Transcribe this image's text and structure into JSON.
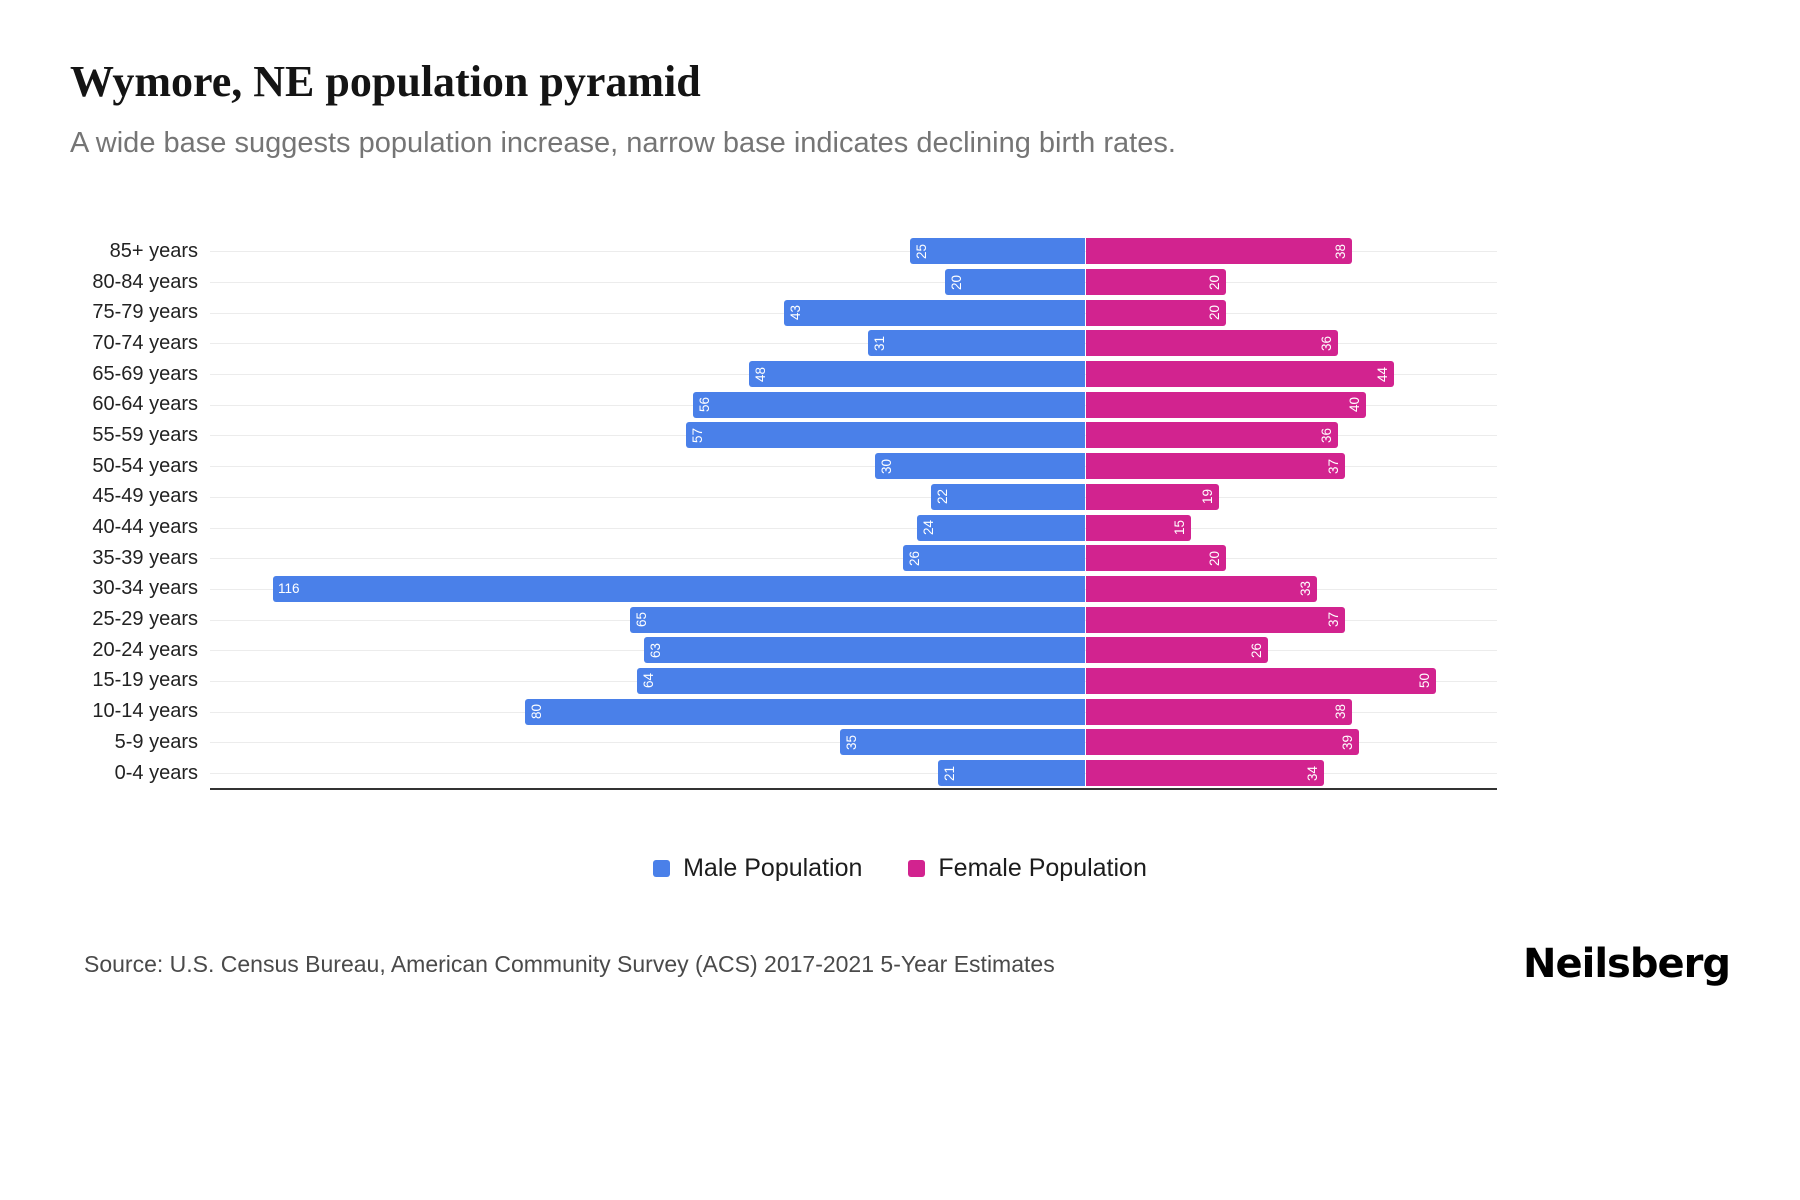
{
  "header": {
    "title": "Wymore, NE population pyramid",
    "subtitle": "A wide base suggests population increase, narrow base indicates declining birth rates."
  },
  "chart_data": {
    "type": "bar",
    "variant": "population-pyramid",
    "orientation": "horizontal",
    "categories": [
      "85+ years",
      "80-84 years",
      "75-79 years",
      "70-74 years",
      "65-69 years",
      "60-64 years",
      "55-59 years",
      "50-54 years",
      "45-49 years",
      "40-44 years",
      "35-39 years",
      "30-34 years",
      "25-29 years",
      "20-24 years",
      "15-19 years",
      "10-14 years",
      "5-9 years",
      "0-4 years"
    ],
    "series": [
      {
        "name": "Male Population",
        "color": "#4a80e9",
        "direction": "left",
        "values": [
          25,
          20,
          43,
          31,
          48,
          56,
          57,
          30,
          22,
          24,
          26,
          116,
          65,
          63,
          64,
          80,
          35,
          21
        ]
      },
      {
        "name": "Female Population",
        "color": "#d2238f",
        "direction": "right",
        "values": [
          38,
          20,
          20,
          36,
          44,
          40,
          36,
          37,
          19,
          15,
          20,
          33,
          37,
          26,
          50,
          38,
          39,
          34
        ]
      }
    ],
    "value_labels": "inside-bar-ends",
    "x_axis": {
      "ticks_visible": false
    },
    "grid": "horizontal-light",
    "legend_position": "bottom-center"
  },
  "footer": {
    "source": "Source: U.S. Census Bureau, American Community Survey (ACS) 2017-2021 5-Year Estimates",
    "brand": "Neilsberg"
  }
}
